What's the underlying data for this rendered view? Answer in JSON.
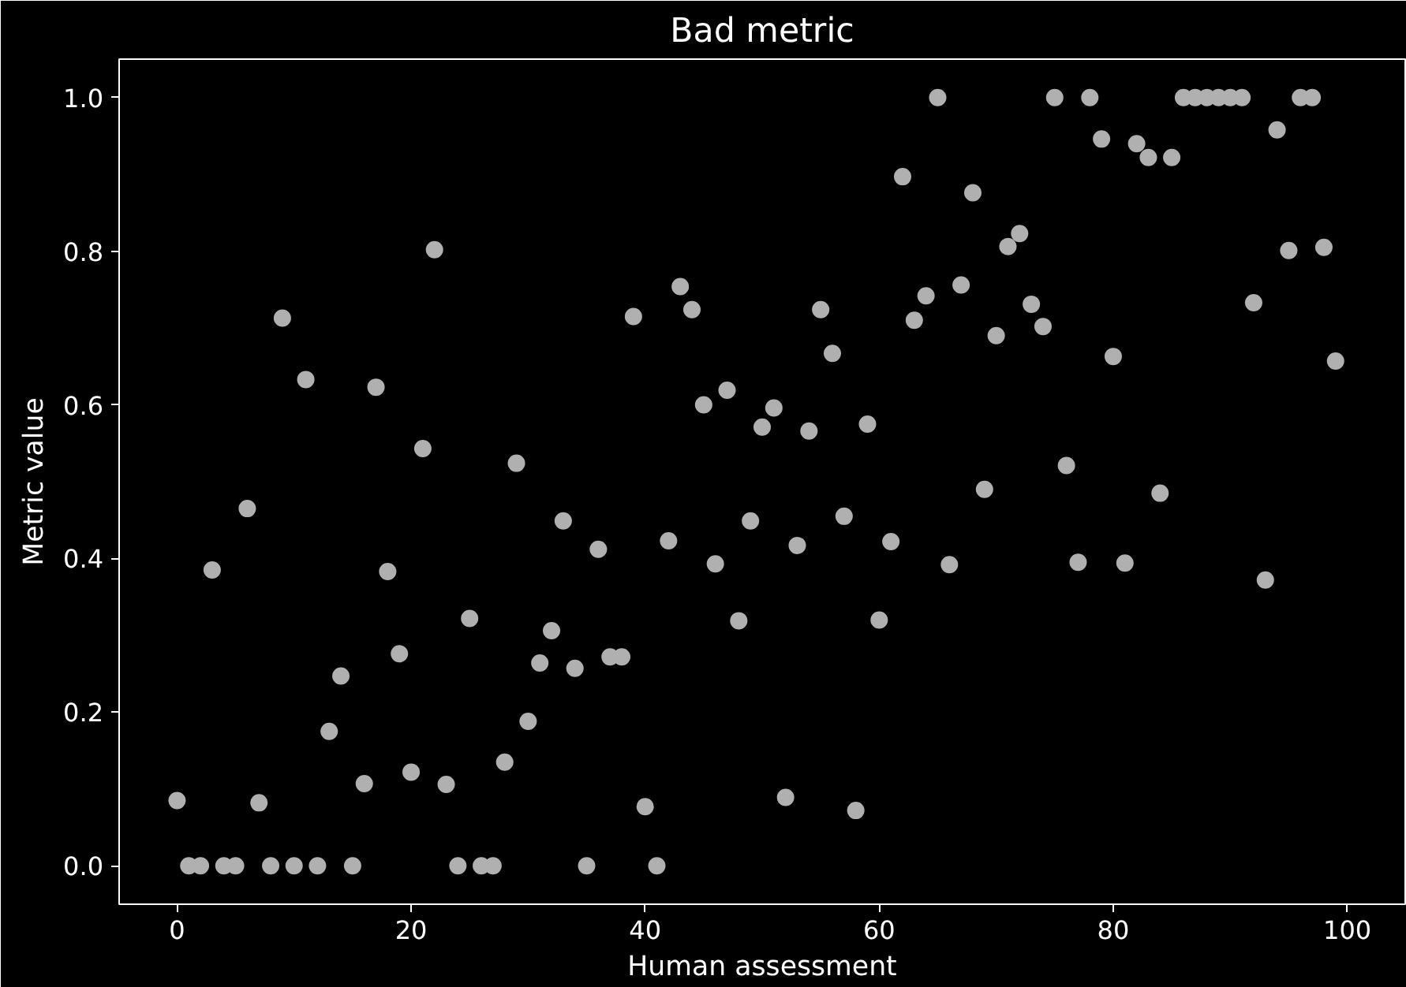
{
  "chart_data": {
    "type": "scatter",
    "title": "Bad metric",
    "xlabel": "Human assessment",
    "ylabel": "Metric value",
    "x": [
      0,
      1,
      2,
      3,
      4,
      5,
      6,
      7,
      8,
      9,
      10,
      11,
      12,
      13,
      14,
      15,
      16,
      17,
      18,
      19,
      20,
      21,
      22,
      23,
      24,
      25,
      26,
      27,
      28,
      29,
      30,
      31,
      32,
      33,
      34,
      35,
      36,
      37,
      38,
      39,
      40,
      41,
      42,
      43,
      44,
      45,
      46,
      47,
      48,
      49,
      50,
      51,
      52,
      53,
      54,
      55,
      56,
      57,
      58,
      59,
      60,
      61,
      62,
      63,
      64,
      65,
      66,
      67,
      68,
      69,
      70,
      71,
      72,
      73,
      74,
      75,
      76,
      77,
      78,
      79,
      80,
      81,
      82,
      83,
      84,
      85,
      86,
      87,
      88,
      89,
      90,
      91,
      92,
      93,
      94,
      95,
      96,
      97,
      98,
      99
    ],
    "series": [
      {
        "color": "#b0b0b0",
        "values": [
          0.085,
          0,
          0,
          0.385,
          0,
          0,
          0.465,
          0.082,
          0,
          0.713,
          0,
          0.633,
          0,
          0.175,
          0.247,
          0,
          0.107,
          0.623,
          0.383,
          0.276,
          0.122,
          0.543,
          0.802,
          0.106,
          0,
          0.322,
          0,
          0,
          0.135,
          0.524,
          0.188,
          0.264,
          0.306,
          0.449,
          0.257,
          0,
          0.412,
          0.272,
          0.272,
          0.715,
          0.077,
          0,
          0.423,
          0.754,
          0.724,
          0.6,
          0.393,
          0.619,
          0.319,
          0.449,
          0.571,
          0.596,
          0.089,
          0.417,
          0.566,
          0.724,
          0.667,
          0.455,
          0.072,
          0.575,
          0.32,
          0.422,
          0.897,
          0.71,
          0.742,
          1.0,
          0.392,
          0.756,
          0.876,
          0.49,
          0.69,
          0.806,
          0.823,
          0.731,
          0.702,
          1.0,
          0.521,
          0.395,
          1.0,
          0.946,
          0.663,
          0.394,
          0.94,
          0.922,
          0.485,
          0.922,
          1.0,
          1.0,
          1.0,
          1.0,
          1.0,
          1.0,
          0.733,
          0.372,
          0.958,
          0.801,
          1.0,
          1.0,
          0.805,
          0.657
        ]
      }
    ],
    "xlim": [
      -4.95,
      104.95
    ],
    "ylim": [
      -0.05,
      1.05
    ],
    "xticks": [
      0,
      20,
      40,
      60,
      80,
      100
    ],
    "yticks": [
      {
        "value": 0,
        "label": "0.0"
      },
      {
        "value": 0.2,
        "label": "0.2"
      },
      {
        "value": 0.4,
        "label": "0.4"
      },
      {
        "value": 0.6,
        "label": "0.6"
      },
      {
        "value": 0.8,
        "label": "0.8"
      },
      {
        "value": 1.0,
        "label": "1.0"
      }
    ],
    "grid": false,
    "marker": "circle"
  }
}
